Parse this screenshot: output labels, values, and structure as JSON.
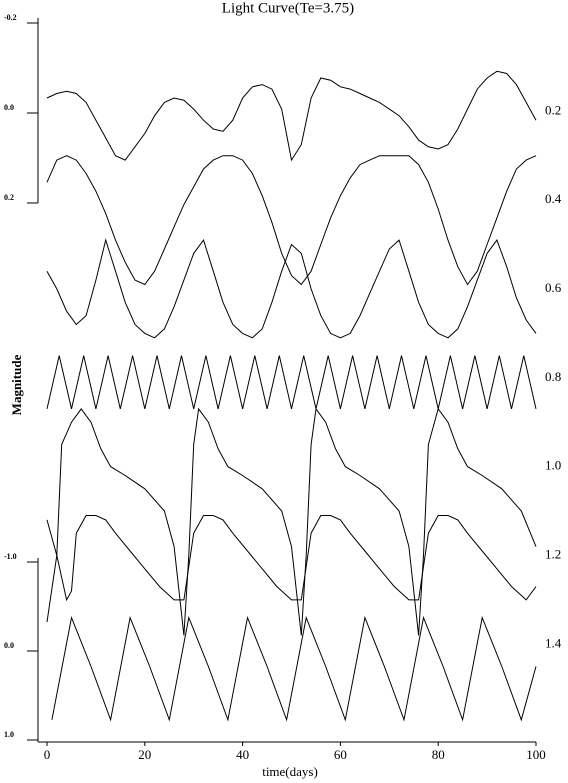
{
  "chart_data": {
    "type": "line",
    "title": "Light Curve(Te=3.75)",
    "xlabel": "time(days)",
    "ylabel": "Magnitude",
    "xlim": [
      0,
      100
    ],
    "xticks": [
      0,
      20,
      40,
      60,
      80,
      100
    ],
    "ylim": [
      1.62,
      -0.01
    ],
    "yticks": [
      0.2,
      0.4,
      0.6,
      0.8,
      {
        "value": 1,
        "label": "1.0"
      },
      1.2,
      1.4
    ],
    "left_scales": [
      {
        "lim": [
          0.2,
          -0.2
        ],
        "ticks": [
          {
            "value": -0.2,
            "label": "-0.2"
          },
          {
            "value": 0,
            "label": "0.0"
          },
          0.2
        ]
      },
      {
        "lim": [
          1,
          -1
        ],
        "ticks": [
          {
            "value": -1,
            "label": "-1.0"
          },
          {
            "value": 0,
            "label": "0.0"
          },
          {
            "value": 1,
            "label": "1.0"
          }
        ]
      }
    ],
    "color": "#000000",
    "series": [
      {
        "x": [
          0,
          2,
          4,
          6,
          8,
          10,
          12,
          14,
          16,
          18,
          20,
          22,
          24,
          26,
          28,
          30,
          32,
          34,
          36,
          38,
          40,
          42,
          44,
          46,
          48,
          50,
          52,
          54,
          56,
          58,
          60,
          62,
          64,
          66,
          68,
          70,
          72,
          74,
          76,
          78,
          80,
          82,
          84,
          86,
          88,
          90,
          92,
          94,
          96,
          98,
          100
        ],
        "values": [
          0.17,
          0.16,
          0.155,
          0.16,
          0.18,
          0.22,
          0.26,
          0.3,
          0.31,
          0.28,
          0.25,
          0.21,
          0.18,
          0.17,
          0.175,
          0.195,
          0.22,
          0.24,
          0.245,
          0.22,
          0.17,
          0.145,
          0.14,
          0.15,
          0.195,
          0.31,
          0.275,
          0.17,
          0.125,
          0.13,
          0.145,
          0.15,
          0.16,
          0.17,
          0.18,
          0.195,
          0.21,
          0.235,
          0.265,
          0.28,
          0.285,
          0.275,
          0.24,
          0.195,
          0.15,
          0.125,
          0.11,
          0.115,
          0.14,
          0.18,
          0.22
        ]
      },
      {
        "x": [
          0,
          2,
          4,
          6,
          8,
          10,
          12,
          14,
          16,
          18,
          20,
          22,
          24,
          26,
          28,
          30,
          32,
          34,
          36,
          38,
          40,
          42,
          44,
          46,
          48,
          50,
          52,
          54,
          56,
          58,
          60,
          62,
          64,
          66,
          68,
          70,
          72,
          74,
          76,
          78,
          80,
          82,
          84,
          86,
          88,
          90,
          92,
          94,
          96,
          98,
          100
        ],
        "values": [
          0.36,
          0.31,
          0.3,
          0.31,
          0.34,
          0.38,
          0.43,
          0.49,
          0.54,
          0.58,
          0.59,
          0.56,
          0.51,
          0.46,
          0.41,
          0.37,
          0.33,
          0.31,
          0.3,
          0.3,
          0.31,
          0.34,
          0.39,
          0.45,
          0.52,
          0.57,
          0.59,
          0.56,
          0.5,
          0.44,
          0.39,
          0.35,
          0.32,
          0.31,
          0.3,
          0.3,
          0.3,
          0.3,
          0.32,
          0.36,
          0.42,
          0.49,
          0.55,
          0.59,
          0.56,
          0.5,
          0.44,
          0.38,
          0.33,
          0.31,
          0.3
        ]
      },
      {
        "x": [
          0,
          2,
          4,
          6,
          8,
          10,
          12,
          14,
          16,
          18,
          20,
          22,
          24,
          26,
          28,
          30,
          32,
          34,
          36,
          38,
          40,
          42,
          44,
          46,
          48,
          50,
          52,
          54,
          56,
          58,
          60,
          62,
          64,
          66,
          68,
          70,
          72,
          74,
          76,
          78,
          80,
          82,
          84,
          86,
          88,
          90,
          92,
          94,
          96,
          98,
          100
        ],
        "values": [
          0.56,
          0.6,
          0.65,
          0.68,
          0.66,
          0.58,
          0.49,
          0.56,
          0.63,
          0.68,
          0.7,
          0.71,
          0.69,
          0.64,
          0.58,
          0.52,
          0.49,
          0.56,
          0.63,
          0.68,
          0.7,
          0.71,
          0.69,
          0.63,
          0.56,
          0.5,
          0.52,
          0.6,
          0.66,
          0.7,
          0.71,
          0.7,
          0.66,
          0.61,
          0.56,
          0.51,
          0.49,
          0.56,
          0.63,
          0.68,
          0.7,
          0.71,
          0.69,
          0.64,
          0.58,
          0.52,
          0.49,
          0.55,
          0.62,
          0.67,
          0.7
        ]
      },
      {
        "x": [
          0,
          2.5,
          5,
          7.5,
          10,
          12.5,
          15,
          17.5,
          20,
          22.5,
          25,
          27.5,
          30,
          32.5,
          35,
          37.5,
          40,
          42.5,
          45,
          47.5,
          50,
          52.5,
          55,
          57.5,
          60,
          62.5,
          65,
          67.5,
          70,
          72.5,
          75,
          77.5,
          80,
          82.5,
          85,
          87.5,
          90,
          92.5,
          95,
          97.5,
          100
        ],
        "values": [
          0.87,
          0.75,
          0.87,
          0.75,
          0.87,
          0.75,
          0.87,
          0.75,
          0.87,
          0.75,
          0.87,
          0.75,
          0.87,
          0.75,
          0.87,
          0.75,
          0.87,
          0.75,
          0.87,
          0.75,
          0.87,
          0.75,
          0.87,
          0.75,
          0.87,
          0.75,
          0.87,
          0.75,
          0.87,
          0.75,
          0.87,
          0.75,
          0.87,
          0.75,
          0.87,
          0.75,
          0.87,
          0.75,
          0.87,
          0.75,
          0.87
        ]
      },
      {
        "x": [
          0,
          2,
          3,
          5,
          7,
          9,
          11,
          13,
          16,
          20,
          24,
          26,
          28,
          29,
          30,
          31,
          33,
          35,
          37,
          40,
          44,
          48,
          50,
          52,
          53,
          54,
          55,
          57,
          59,
          61,
          64,
          68,
          72,
          74,
          76,
          77,
          78,
          80,
          82,
          84,
          86,
          89,
          93,
          97,
          100
        ],
        "values": [
          1.35,
          1.2,
          0.95,
          0.9,
          0.87,
          0.9,
          0.96,
          1.0,
          1.02,
          1.05,
          1.1,
          1.18,
          1.38,
          1.2,
          0.95,
          0.87,
          0.9,
          0.96,
          1.0,
          1.02,
          1.05,
          1.1,
          1.18,
          1.38,
          1.2,
          0.95,
          0.87,
          0.9,
          0.96,
          1.0,
          1.02,
          1.05,
          1.1,
          1.18,
          1.38,
          1.2,
          0.95,
          0.87,
          0.9,
          0.96,
          1.0,
          1.02,
          1.05,
          1.1,
          1.18
        ]
      },
      {
        "x": [
          0,
          2,
          4,
          5,
          6,
          8,
          10,
          12,
          14,
          17,
          20,
          23,
          26,
          28,
          30,
          32,
          34,
          36,
          38,
          41,
          44,
          47,
          50,
          52,
          54,
          56,
          58,
          60,
          62,
          65,
          68,
          71,
          74,
          76,
          78,
          80,
          82,
          84,
          86,
          89,
          92,
          95,
          98,
          100
        ],
        "values": [
          1.12,
          1.2,
          1.3,
          1.28,
          1.15,
          1.11,
          1.11,
          1.12,
          1.15,
          1.19,
          1.23,
          1.27,
          1.3,
          1.3,
          1.15,
          1.11,
          1.11,
          1.12,
          1.15,
          1.19,
          1.23,
          1.27,
          1.3,
          1.3,
          1.15,
          1.11,
          1.11,
          1.12,
          1.15,
          1.19,
          1.23,
          1.27,
          1.3,
          1.3,
          1.15,
          1.11,
          1.11,
          1.12,
          1.15,
          1.19,
          1.23,
          1.27,
          1.3,
          1.27
        ]
      },
      {
        "x": [
          1,
          5,
          9,
          13,
          17,
          21,
          25,
          29,
          33,
          37,
          41,
          45,
          49,
          53,
          57,
          61,
          65,
          69,
          73,
          77,
          81,
          85,
          89,
          93,
          97,
          100
        ],
        "values": [
          1.57,
          1.34,
          1.45,
          1.57,
          1.34,
          1.45,
          1.57,
          1.34,
          1.45,
          1.57,
          1.34,
          1.45,
          1.57,
          1.34,
          1.45,
          1.57,
          1.34,
          1.45,
          1.57,
          1.34,
          1.45,
          1.57,
          1.34,
          1.45,
          1.57,
          1.45
        ]
      }
    ]
  }
}
